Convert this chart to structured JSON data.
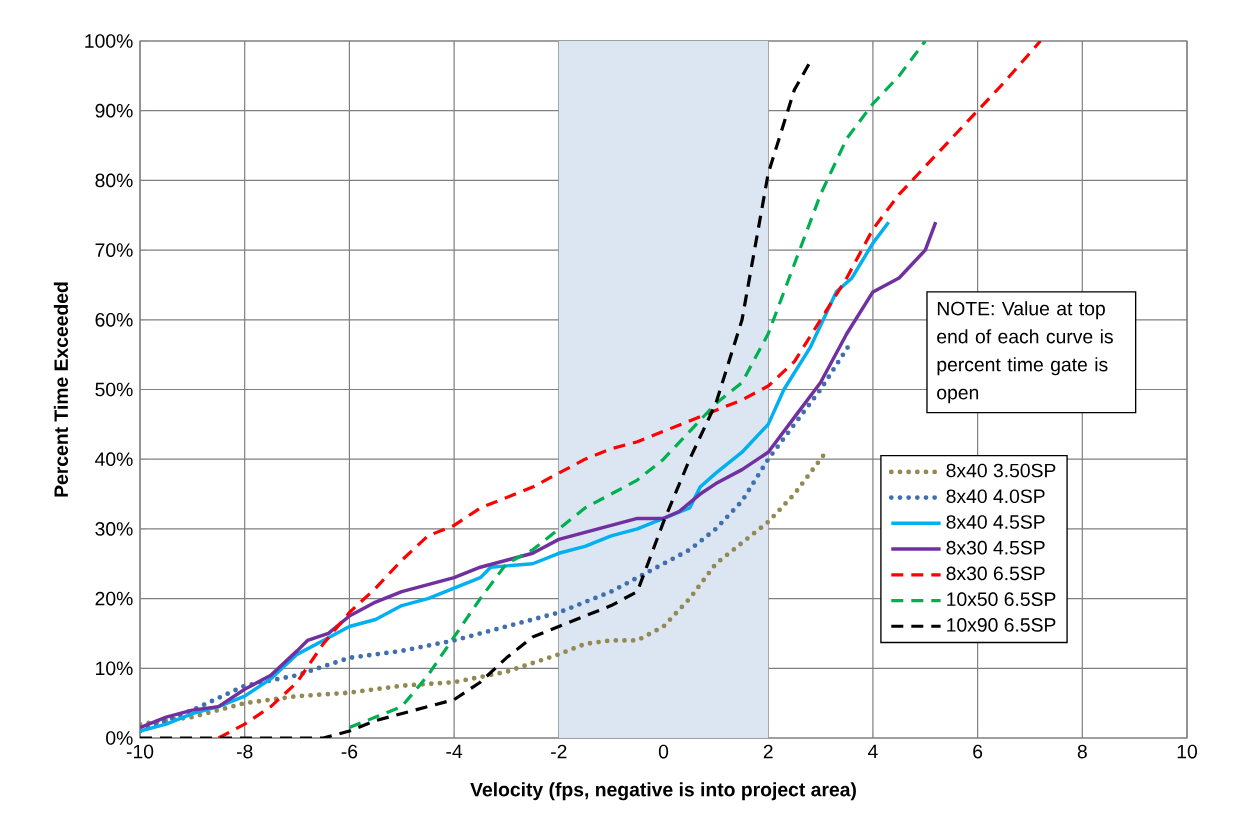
{
  "chart_data": {
    "type": "line",
    "xlabel": "Velocity (fps, negative is into project area)",
    "ylabel": "Percent Time Exceeded",
    "xlim": [
      -10,
      10
    ],
    "xticks": [
      -10,
      -8,
      -6,
      -4,
      -2,
      0,
      2,
      4,
      6,
      8,
      10
    ],
    "ylim": [
      0,
      100
    ],
    "yticks": [
      {
        "value": 0,
        "label": "0%"
      },
      {
        "value": 10,
        "label": "10%"
      },
      {
        "value": 20,
        "label": "20%"
      },
      {
        "value": 30,
        "label": "30%"
      },
      {
        "value": 40,
        "label": "40%"
      },
      {
        "value": 50,
        "label": "50%"
      },
      {
        "value": 60,
        "label": "60%"
      },
      {
        "value": 70,
        "label": "70%"
      },
      {
        "value": 80,
        "label": "80%"
      },
      {
        "value": 90,
        "label": "90%"
      },
      {
        "value": 100,
        "label": "100%"
      }
    ],
    "grid": true,
    "legend": "bottom right",
    "bands": [
      {
        "axis": "x",
        "from": -2,
        "to": 2,
        "color": "#dce6f2"
      }
    ],
    "annotations": [
      "NOTE:  Value at top end of each curve is percent time gate is open"
    ],
    "series": [
      {
        "name": "8x40 3.50SP",
        "color": "#938953",
        "line_style": "dotted",
        "x": [
          -10,
          -9,
          -8,
          -7,
          -6,
          -5,
          -4,
          -3,
          -2,
          -1.5,
          -1,
          -0.5,
          0,
          0.5,
          1,
          1.5,
          2,
          2.5,
          3.1
        ],
        "values": [
          2,
          3,
          5,
          6,
          6.5,
          7.5,
          8,
          9.5,
          12,
          13.5,
          14,
          14,
          16,
          20,
          25,
          28,
          31,
          35,
          41
        ]
      },
      {
        "name": "8x40 4.0SP",
        "color": "#3f6fae",
        "line_style": "dotted",
        "x": [
          -10,
          -9,
          -8,
          -7,
          -6,
          -5,
          -4,
          -3,
          -2,
          -1,
          -0.5,
          0,
          0.5,
          1,
          1.5,
          2,
          2.5,
          3,
          3.6
        ],
        "values": [
          1,
          4,
          7.5,
          9,
          11.5,
          12.5,
          14,
          16,
          18,
          21,
          23,
          25,
          27,
          30,
          34,
          40,
          45,
          50,
          57
        ]
      },
      {
        "name": "8x40 4.5SP",
        "color": "#00b0f0",
        "line_style": "solid",
        "x": [
          -10,
          -9.5,
          -9,
          -8.5,
          -8,
          -7.5,
          -7,
          -6.5,
          -6,
          -5.5,
          -5,
          -4.5,
          -4,
          -3.5,
          -3.3,
          -2.5,
          -2,
          -1.5,
          -1,
          -0.5,
          0,
          0.5,
          0.7,
          1,
          1.5,
          2,
          2.3,
          2.8,
          3.3,
          3.6,
          4,
          4.3
        ],
        "values": [
          1,
          2,
          3.5,
          4.5,
          6,
          8.5,
          12,
          14,
          16,
          17,
          19,
          20,
          21.5,
          23,
          24.5,
          25,
          26.5,
          27.5,
          29,
          30,
          31.5,
          33,
          36,
          38,
          41,
          45,
          50,
          56,
          64,
          66,
          71,
          74
        ]
      },
      {
        "name": "8x30 4.5SP",
        "color": "#7030a0",
        "line_style": "solid",
        "x": [
          -10,
          -9.5,
          -9,
          -8.5,
          -8,
          -7.5,
          -7,
          -6.8,
          -6.4,
          -6,
          -5.5,
          -5,
          -4.5,
          -4,
          -3.5,
          -3,
          -2.5,
          -2,
          -1.5,
          -1,
          -0.5,
          0,
          0.3,
          0.7,
          1,
          1.5,
          2,
          2.5,
          3,
          3.5,
          4,
          4.5,
          5,
          5.2
        ],
        "values": [
          1.5,
          3,
          4,
          4.5,
          7,
          9,
          12.5,
          14,
          15,
          17.5,
          19.5,
          21,
          22,
          23,
          24.5,
          25.5,
          26.5,
          28.5,
          29.5,
          30.5,
          31.5,
          31.5,
          32.5,
          35,
          36.5,
          38.5,
          41,
          46,
          51,
          58,
          64,
          66,
          70,
          74
        ]
      },
      {
        "name": "8x30 6.5SP",
        "color": "#ff0000",
        "line_style": "dashed",
        "x": [
          -8.5,
          -8,
          -7.5,
          -7,
          -6.5,
          -6,
          -5.5,
          -5,
          -4.5,
          -4,
          -3.5,
          -3,
          -2.5,
          -2,
          -1.5,
          -1,
          -0.5,
          0,
          0.5,
          1,
          1.5,
          2,
          2.5,
          3,
          3.5,
          4,
          4.5,
          5,
          5.5,
          6,
          6.5,
          7.2
        ],
        "values": [
          0,
          2,
          4.5,
          8,
          13.5,
          18,
          21.5,
          25.5,
          29,
          30.5,
          33,
          34.5,
          36,
          38,
          40,
          41.5,
          42.5,
          44,
          45.5,
          47,
          48.5,
          50.5,
          54,
          60,
          66,
          73,
          78,
          82,
          86,
          90,
          94,
          100
        ]
      },
      {
        "name": "10x50 6.5SP",
        "color": "#00b050",
        "line_style": "dashed",
        "x": [
          -6,
          -5.5,
          -5,
          -4.5,
          -4,
          -3.5,
          -3,
          -2.5,
          -2,
          -1.5,
          -1,
          -0.5,
          0,
          0.5,
          1,
          1.5,
          2,
          2.5,
          3,
          3.5,
          4,
          4.5,
          5
        ],
        "values": [
          1.5,
          3,
          4.5,
          9,
          14.5,
          20,
          25,
          27,
          30,
          33,
          35,
          37,
          40,
          44,
          48,
          51,
          58,
          68,
          78,
          86,
          91,
          95,
          100
        ]
      },
      {
        "name": "10x90 6.5SP",
        "color": "#000000",
        "line_style": "dashed",
        "x": [
          -10,
          -6.5,
          -6,
          -5.5,
          -5,
          -4.5,
          -4,
          -3.5,
          -3,
          -2.5,
          -2,
          -1.5,
          -1,
          -0.5,
          0,
          0.5,
          1,
          1.5,
          2,
          2.5,
          2.8
        ],
        "values": [
          0,
          0,
          1,
          2.5,
          3.5,
          4.5,
          5.5,
          8,
          11.5,
          14.5,
          16,
          17.5,
          19,
          21,
          31,
          40,
          48,
          60,
          81,
          93,
          97
        ]
      }
    ]
  }
}
